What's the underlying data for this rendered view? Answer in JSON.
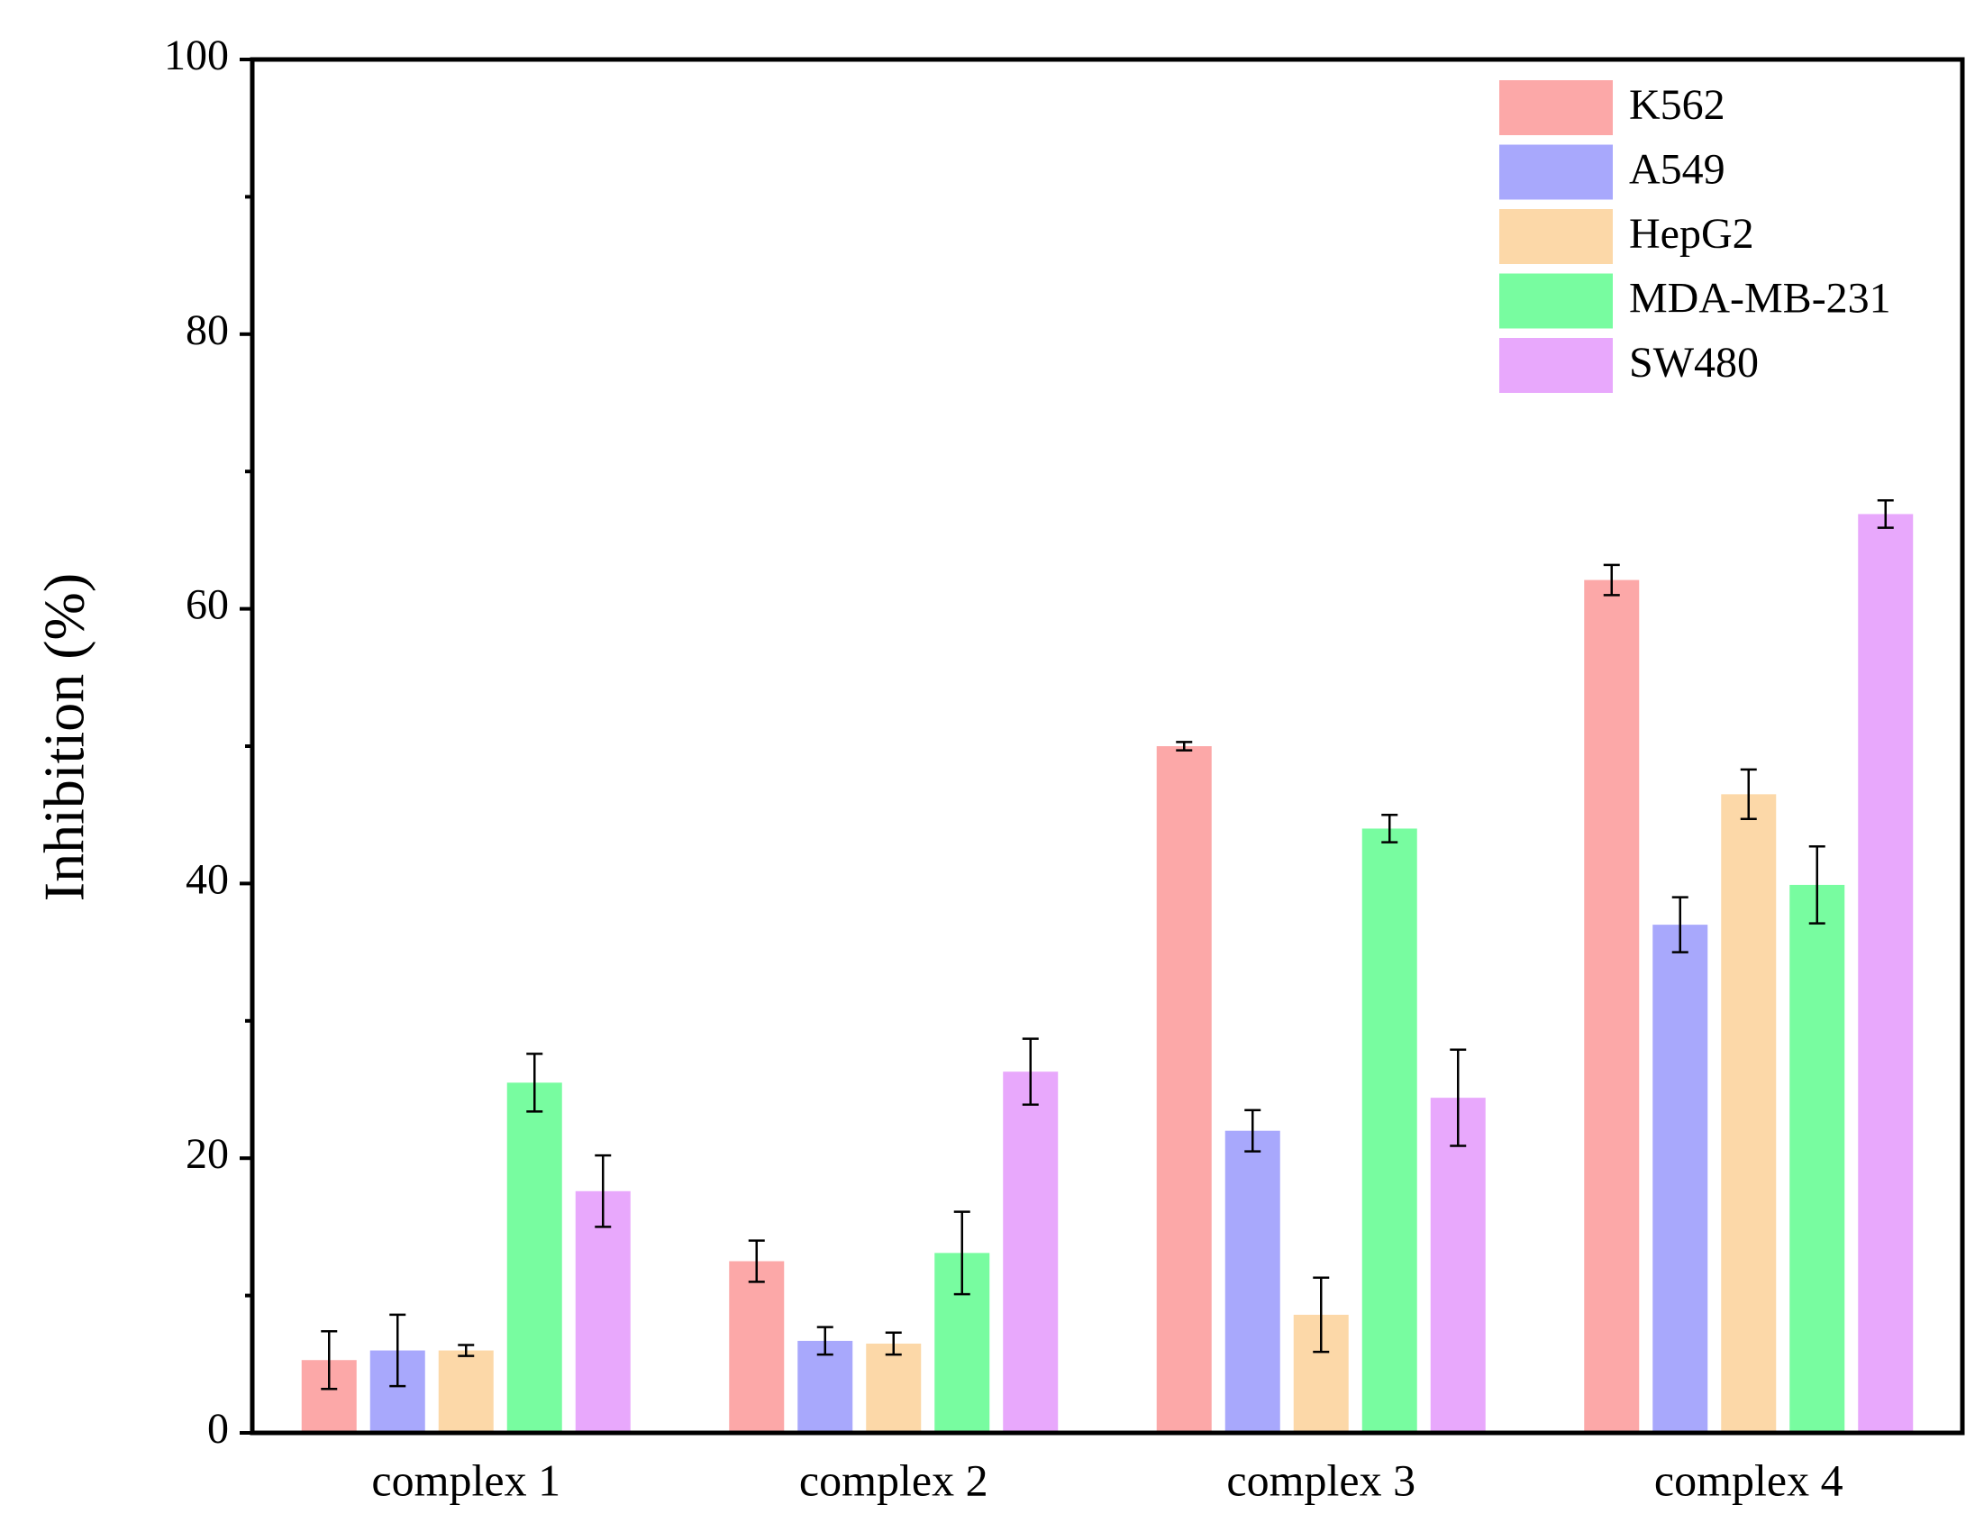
{
  "chart_data": {
    "type": "bar",
    "y_label": "Inhibition (%)",
    "categories": [
      "complex 1",
      "complex 2",
      "complex 3",
      "complex 4"
    ],
    "series": [
      {
        "name": "K562",
        "color": "#fca8a8",
        "values": [
          5.3,
          12.5,
          50.0,
          62.1
        ],
        "errors": [
          2.1,
          1.5,
          0.3,
          1.1
        ]
      },
      {
        "name": "A549",
        "color": "#a8a8fc",
        "values": [
          6.0,
          6.7,
          22.0,
          37.0
        ],
        "errors": [
          2.6,
          1.0,
          1.5,
          2.0
        ]
      },
      {
        "name": "HepG2",
        "color": "#fcd8a8",
        "values": [
          6.0,
          6.5,
          8.6,
          46.5
        ],
        "errors": [
          0.4,
          0.8,
          2.7,
          1.8
        ]
      },
      {
        "name": "MDA-MB-231",
        "color": "#78fca0",
        "values": [
          25.5,
          13.1,
          44.0,
          39.9
        ],
        "errors": [
          2.1,
          3.0,
          1.0,
          2.8
        ]
      },
      {
        "name": "SW480",
        "color": "#e8a8fc",
        "values": [
          17.6,
          26.3,
          24.4,
          66.9
        ],
        "errors": [
          2.6,
          2.4,
          3.5,
          1.0
        ]
      }
    ],
    "ylim": [
      0,
      100
    ],
    "yticks": [
      0,
      20,
      40,
      60,
      80,
      100
    ],
    "legend": "upper right"
  }
}
